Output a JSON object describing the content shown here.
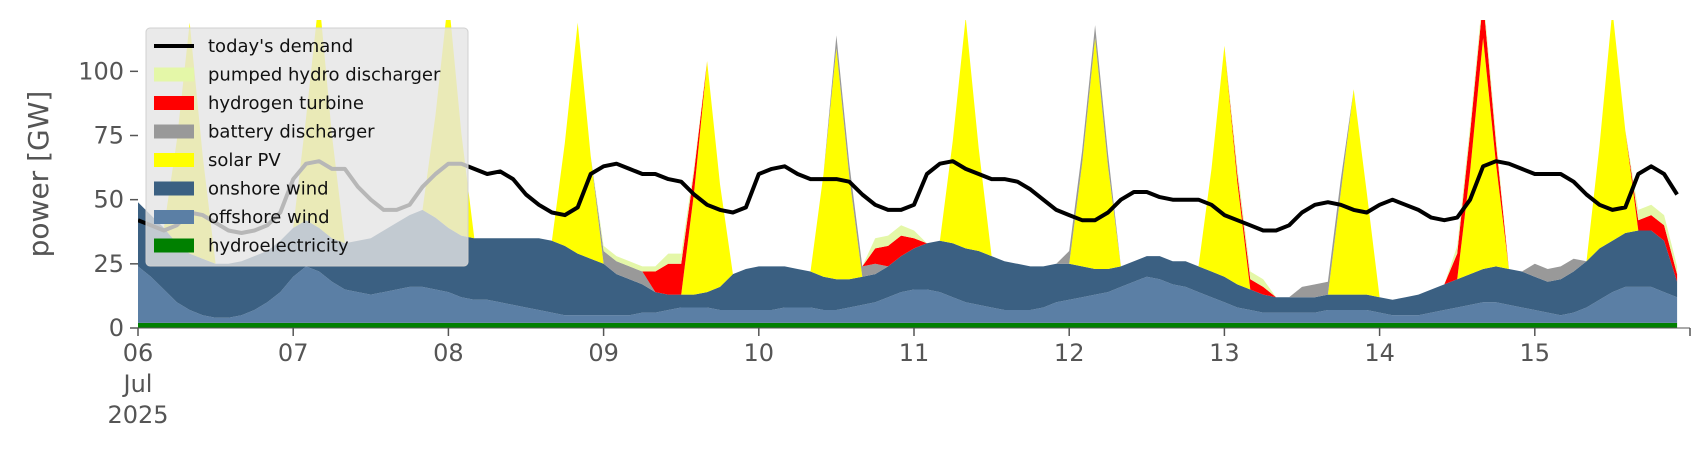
{
  "chart_data": {
    "type": "area",
    "ylabel": "power [GW]",
    "ylim": [
      0,
      120
    ],
    "yticks": [
      0,
      25,
      50,
      75,
      100
    ],
    "x_start": "2025-07-06",
    "x_end": "2025-07-16",
    "x_tick_labels": [
      [
        "06",
        "Jul",
        "2025"
      ],
      [
        "07"
      ],
      [
        "08"
      ],
      [
        "09"
      ],
      [
        "10"
      ],
      [
        "11"
      ],
      [
        "12"
      ],
      [
        "13"
      ],
      [
        "14"
      ],
      [
        "15"
      ]
    ],
    "grid": false,
    "legend_position": "top-left",
    "x_unit": "hours since 2025-07-06 00:00",
    "x": [
      0,
      2,
      4,
      6,
      8,
      10,
      12,
      14,
      16,
      18,
      20,
      22,
      24,
      26,
      28,
      30,
      32,
      34,
      36,
      38,
      40,
      42,
      44,
      46,
      48,
      50,
      52,
      54,
      56,
      58,
      60,
      62,
      64,
      66,
      68,
      70,
      72,
      74,
      76,
      78,
      80,
      82,
      84,
      86,
      88,
      90,
      92,
      94,
      96,
      98,
      100,
      102,
      104,
      106,
      108,
      110,
      112,
      114,
      116,
      118,
      120,
      122,
      124,
      126,
      128,
      130,
      132,
      134,
      136,
      138,
      140,
      142,
      144,
      146,
      148,
      150,
      152,
      154,
      156,
      158,
      160,
      162,
      164,
      166,
      168,
      170,
      172,
      174,
      176,
      178,
      180,
      182,
      184,
      186,
      188,
      190,
      192,
      194,
      196,
      198,
      200,
      202,
      204,
      206,
      208,
      210,
      212,
      214,
      216,
      218,
      220,
      222,
      224,
      226,
      228,
      230,
      232,
      234,
      236,
      238
    ],
    "series": [
      {
        "name": "hydroelectricity",
        "color": "#008000",
        "values": [
          2,
          2,
          2,
          2,
          2,
          2,
          2,
          2,
          2,
          2,
          2,
          2,
          2,
          2,
          2,
          2,
          2,
          2,
          2,
          2,
          2,
          2,
          2,
          2,
          2,
          2,
          2,
          2,
          2,
          2,
          2,
          2,
          2,
          2,
          2,
          2,
          2,
          2,
          2,
          2,
          2,
          2,
          2,
          2,
          2,
          2,
          2,
          2,
          2,
          2,
          2,
          2,
          2,
          2,
          2,
          2,
          2,
          2,
          2,
          2,
          2,
          2,
          2,
          2,
          2,
          2,
          2,
          2,
          2,
          2,
          2,
          2,
          2,
          2,
          2,
          2,
          2,
          2,
          2,
          2,
          2,
          2,
          2,
          2,
          2,
          2,
          2,
          2,
          2,
          2,
          2,
          2,
          2,
          2,
          2,
          2,
          2,
          2,
          2,
          2,
          2,
          2,
          2,
          2,
          2,
          2,
          2,
          2,
          2,
          2,
          2,
          2,
          2,
          2,
          2,
          2,
          2,
          2,
          2,
          2
        ]
      },
      {
        "name": "offshore wind",
        "color": "#5b7fa5",
        "values": [
          22,
          18,
          13,
          8,
          5,
          3,
          2,
          2,
          3,
          5,
          8,
          12,
          18,
          22,
          20,
          16,
          13,
          12,
          11,
          12,
          13,
          14,
          14,
          13,
          12,
          10,
          9,
          9,
          8,
          7,
          6,
          5,
          4,
          3,
          3,
          3,
          3,
          3,
          3,
          4,
          4,
          5,
          6,
          6,
          6,
          5,
          5,
          5,
          5,
          5,
          6,
          6,
          6,
          5,
          5,
          6,
          7,
          8,
          10,
          12,
          13,
          13,
          12,
          10,
          8,
          7,
          6,
          5,
          5,
          5,
          6,
          8,
          9,
          10,
          11,
          12,
          14,
          16,
          18,
          17,
          15,
          14,
          12,
          10,
          8,
          6,
          5,
          4,
          4,
          4,
          4,
          4,
          5,
          5,
          5,
          5,
          4,
          3,
          3,
          3,
          4,
          5,
          6,
          7,
          8,
          8,
          7,
          6,
          5,
          4,
          3,
          4,
          6,
          9,
          12,
          14,
          14,
          14,
          12,
          10
        ]
      },
      {
        "name": "onshore wind",
        "color": "#3b6082",
        "values": [
          25,
          24,
          24,
          23,
          22,
          22,
          21,
          21,
          21,
          21,
          20,
          20,
          19,
          18,
          17,
          17,
          18,
          20,
          22,
          24,
          26,
          28,
          30,
          28,
          25,
          24,
          24,
          24,
          25,
          26,
          27,
          28,
          28,
          27,
          24,
          22,
          20,
          16,
          14,
          11,
          8,
          6,
          5,
          5,
          6,
          9,
          14,
          16,
          17,
          17,
          16,
          15,
          14,
          13,
          12,
          11,
          11,
          11,
          12,
          14,
          16,
          18,
          20,
          21,
          21,
          21,
          20,
          19,
          18,
          17,
          16,
          15,
          14,
          12,
          10,
          9,
          8,
          8,
          8,
          9,
          9,
          10,
          10,
          10,
          10,
          9,
          8,
          7,
          6,
          6,
          6,
          6,
          6,
          6,
          6,
          6,
          6,
          6,
          7,
          8,
          9,
          10,
          11,
          12,
          13,
          14,
          14,
          14,
          13,
          12,
          14,
          16,
          18,
          20,
          20,
          21,
          22,
          22,
          20,
          6
        ]
      },
      {
        "name": "solar PV",
        "color": "#ffff00",
        "values": [
          0,
          0,
          0,
          40,
          90,
          40,
          0,
          0,
          0,
          0,
          0,
          0,
          0,
          40,
          90,
          40,
          0,
          0,
          0,
          0,
          0,
          0,
          0,
          40,
          90,
          40,
          0,
          0,
          0,
          0,
          0,
          0,
          0,
          40,
          90,
          40,
          0,
          0,
          0,
          0,
          0,
          0,
          0,
          40,
          90,
          40,
          0,
          0,
          0,
          0,
          0,
          0,
          0,
          40,
          90,
          40,
          0,
          0,
          0,
          0,
          0,
          0,
          0,
          40,
          90,
          40,
          0,
          0,
          0,
          0,
          0,
          0,
          0,
          40,
          90,
          40,
          0,
          0,
          0,
          0,
          0,
          0,
          0,
          40,
          90,
          40,
          0,
          0,
          0,
          0,
          0,
          0,
          0,
          40,
          80,
          40,
          0,
          0,
          0,
          0,
          0,
          0,
          0,
          40,
          90,
          40,
          0,
          0,
          0,
          0,
          0,
          0,
          0,
          40,
          90,
          40,
          0,
          0,
          0,
          0
        ]
      },
      {
        "name": "battery discharger",
        "color": "#999999",
        "values": [
          0,
          0,
          0,
          0,
          0,
          0,
          0,
          0,
          0,
          0,
          0,
          0,
          0,
          0,
          0,
          0,
          0,
          0,
          0,
          0,
          0,
          0,
          0,
          0,
          0,
          0,
          0,
          0,
          0,
          0,
          0,
          0,
          0,
          0,
          0,
          0,
          5,
          5,
          5,
          5,
          0,
          0,
          0,
          0,
          0,
          0,
          0,
          0,
          0,
          0,
          0,
          0,
          0,
          0,
          5,
          5,
          4,
          4,
          0,
          0,
          0,
          0,
          0,
          0,
          0,
          0,
          0,
          0,
          0,
          0,
          0,
          0,
          5,
          5,
          5,
          5,
          0,
          0,
          0,
          0,
          0,
          0,
          0,
          0,
          0,
          0,
          0,
          0,
          0,
          0,
          4,
          5,
          5,
          5,
          0,
          0,
          0,
          0,
          0,
          0,
          0,
          0,
          0,
          0,
          0,
          0,
          0,
          0,
          5,
          5,
          5,
          5,
          0,
          0,
          0,
          0,
          0,
          0,
          0,
          0
        ]
      },
      {
        "name": "hydrogen turbine",
        "color": "#ff0000",
        "values": [
          0,
          0,
          0,
          0,
          0,
          0,
          0,
          0,
          0,
          0,
          0,
          0,
          0,
          0,
          0,
          0,
          0,
          0,
          0,
          0,
          0,
          0,
          0,
          0,
          0,
          0,
          0,
          0,
          0,
          0,
          0,
          0,
          0,
          0,
          0,
          0,
          0,
          0,
          0,
          0,
          8,
          12,
          12,
          8,
          0,
          0,
          0,
          0,
          0,
          0,
          0,
          0,
          0,
          0,
          0,
          0,
          0,
          6,
          8,
          8,
          4,
          0,
          0,
          0,
          0,
          0,
          0,
          0,
          0,
          0,
          0,
          0,
          0,
          0,
          0,
          0,
          0,
          0,
          0,
          0,
          0,
          0,
          0,
          0,
          0,
          3,
          4,
          3,
          0,
          0,
          0,
          0,
          0,
          0,
          0,
          0,
          0,
          0,
          0,
          0,
          0,
          0,
          10,
          15,
          15,
          8,
          0,
          0,
          0,
          0,
          0,
          0,
          0,
          0,
          0,
          0,
          4,
          6,
          6,
          3
        ]
      },
      {
        "name": "pumped hydro discharger",
        "color": "#e4f7a8",
        "values": [
          0,
          0,
          0,
          0,
          0,
          0,
          0,
          0,
          0,
          0,
          0,
          0,
          0,
          0,
          0,
          0,
          0,
          0,
          0,
          0,
          0,
          0,
          0,
          0,
          0,
          0,
          0,
          0,
          0,
          0,
          0,
          0,
          0,
          0,
          0,
          0,
          2,
          2,
          2,
          2,
          2,
          4,
          4,
          2,
          0,
          0,
          0,
          0,
          0,
          0,
          0,
          0,
          0,
          0,
          0,
          0,
          0,
          4,
          4,
          4,
          3,
          0,
          0,
          0,
          0,
          0,
          0,
          0,
          0,
          0,
          0,
          0,
          0,
          0,
          0,
          0,
          0,
          0,
          0,
          0,
          0,
          0,
          0,
          0,
          0,
          3,
          3,
          3,
          0,
          0,
          0,
          0,
          0,
          0,
          0,
          0,
          0,
          0,
          0,
          0,
          0,
          0,
          3,
          3,
          3,
          3,
          0,
          0,
          0,
          0,
          0,
          0,
          0,
          0,
          0,
          0,
          4,
          4,
          4,
          3
        ]
      },
      {
        "name": "today's demand",
        "color": "#000000",
        "type": "line",
        "values": [
          42,
          40,
          38,
          40,
          45,
          44,
          41,
          38,
          37,
          38,
          40,
          45,
          58,
          64,
          65,
          62,
          62,
          55,
          50,
          46,
          46,
          48,
          55,
          60,
          64,
          64,
          62,
          60,
          61,
          58,
          52,
          48,
          45,
          44,
          47,
          60,
          63,
          64,
          62,
          60,
          60,
          58,
          57,
          52,
          48,
          46,
          45,
          47,
          60,
          62,
          63,
          60,
          58,
          58,
          58,
          57,
          52,
          48,
          46,
          46,
          48,
          60,
          64,
          65,
          62,
          60,
          58,
          58,
          57,
          54,
          50,
          46,
          44,
          42,
          42,
          45,
          50,
          53,
          53,
          51,
          50,
          50,
          50,
          48,
          44,
          42,
          40,
          38,
          38,
          40,
          45,
          48,
          49,
          48,
          46,
          45,
          48,
          50,
          48,
          46,
          43,
          42,
          43,
          50,
          63,
          65,
          64,
          62,
          60,
          60,
          60,
          57,
          52,
          48,
          46,
          47,
          60,
          63,
          60,
          52
        ]
      }
    ]
  }
}
